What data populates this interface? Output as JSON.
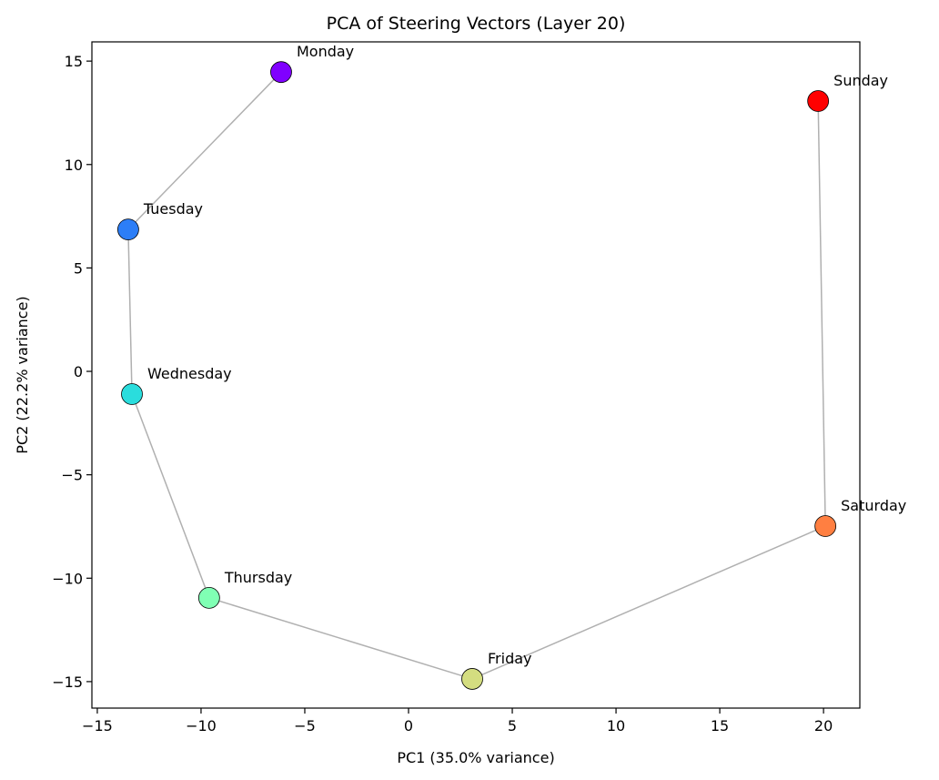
{
  "chart_data": {
    "type": "scatter",
    "title": "PCA of Steering Vectors (Layer 20)",
    "xlabel": "PC1 (35.0% variance)",
    "ylabel": "PC2 (22.2% variance)",
    "xlim": [
      -15.26,
      21.75
    ],
    "ylim": [
      -16.28,
      15.93
    ],
    "xticks": [
      -15,
      -10,
      -5,
      0,
      5,
      10,
      15,
      20
    ],
    "yticks": [
      -15,
      -10,
      -5,
      0,
      5,
      10,
      15
    ],
    "xtick_labels": [
      "−15",
      "−10",
      "−5",
      "0",
      "5",
      "10",
      "15",
      "20"
    ],
    "ytick_labels": [
      "−15",
      "−10",
      "−5",
      "0",
      "5",
      "10",
      "15"
    ],
    "grid": false,
    "connecting_line_color": "#b0b0b0",
    "points": [
      {
        "label": "Monday",
        "x": -6.14,
        "y": 14.47,
        "color": "#8000ff"
      },
      {
        "label": "Tuesday",
        "x": -13.51,
        "y": 6.86,
        "color": "#2c7ef7"
      },
      {
        "label": "Wednesday",
        "x": -13.33,
        "y": -1.1,
        "color": "#2adddd"
      },
      {
        "label": "Thursday",
        "x": -9.61,
        "y": -10.95,
        "color": "#80ffb4"
      },
      {
        "label": "Friday",
        "x": 3.07,
        "y": -14.87,
        "color": "#d4dd80"
      },
      {
        "label": "Saturday",
        "x": 20.09,
        "y": -7.48,
        "color": "#ff7f41"
      },
      {
        "label": "Sunday",
        "x": 19.74,
        "y": 13.07,
        "color": "#ff0000"
      }
    ]
  }
}
